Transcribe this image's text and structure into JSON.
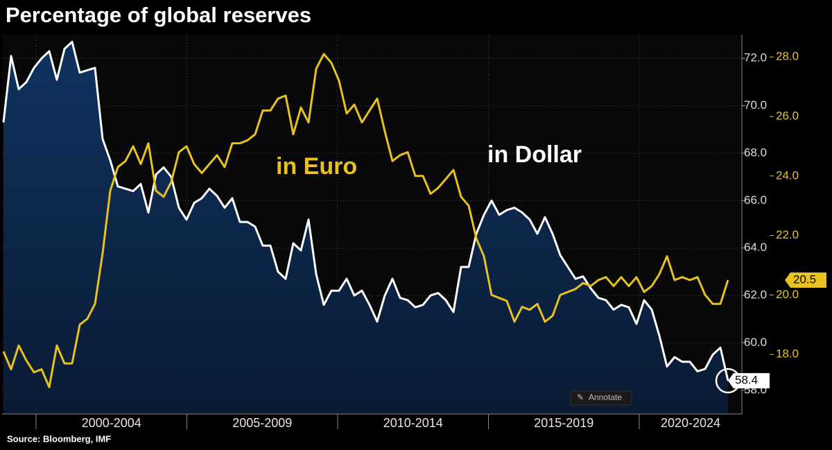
{
  "chart_data": {
    "type": "line",
    "title": "Percentage of global reserves",
    "source": "Source: Bloomberg, IMF",
    "annotate_button": "Annotate",
    "x_labels": [
      "2000-2004",
      "2005-2009",
      "2010-2014",
      "2015-2019",
      "2020-2024"
    ],
    "ylim": [
      57,
      73
    ],
    "yticks": [
      {
        "value": 58,
        "label": "58.0"
      },
      {
        "value": 60,
        "label": "60.0"
      },
      {
        "value": 62,
        "label": "62.0"
      },
      {
        "value": 64,
        "label": "64.0"
      },
      {
        "value": 66,
        "label": "66.0"
      },
      {
        "value": 68,
        "label": "68.0"
      },
      {
        "value": 70,
        "label": "70.0"
      },
      {
        "value": 72,
        "label": "72.0"
      }
    ],
    "y2lim": [
      16,
      28.75
    ],
    "y2ticks": [
      {
        "value": 18,
        "label": "18.0"
      },
      {
        "value": 20,
        "label": "20.0"
      },
      {
        "value": 22,
        "label": "22.0"
      },
      {
        "value": 24,
        "label": "24.0"
      },
      {
        "value": 26,
        "label": "26.0"
      },
      {
        "value": 28,
        "label": "28.0"
      }
    ],
    "grid": true,
    "series": [
      {
        "name": "in Dollar",
        "color": "#ffffff",
        "area_color": "#0c2a50",
        "axis": "y",
        "values": [
          69.3,
          72.1,
          70.7,
          71.0,
          71.6,
          72.0,
          72.3,
          71.1,
          72.4,
          72.7,
          71.4,
          71.5,
          71.6,
          68.6,
          67.7,
          66.6,
          66.5,
          66.4,
          66.7,
          65.5,
          67.1,
          67.4,
          67.0,
          65.7,
          65.2,
          65.9,
          66.1,
          66.5,
          66.2,
          65.7,
          66.1,
          65.1,
          65.1,
          64.9,
          64.1,
          64.1,
          63.0,
          62.7,
          64.2,
          63.9,
          65.2,
          62.9,
          61.6,
          62.2,
          62.2,
          62.7,
          62.0,
          62.2,
          61.6,
          60.9,
          62.0,
          62.7,
          61.9,
          61.8,
          61.5,
          61.6,
          62.0,
          62.1,
          61.8,
          61.3,
          63.2,
          63.2,
          64.6,
          65.4,
          66.0,
          65.4,
          65.6,
          65.7,
          65.5,
          65.2,
          64.6,
          65.3,
          64.6,
          63.7,
          63.2,
          62.7,
          62.8,
          62.3,
          61.9,
          61.8,
          61.4,
          61.6,
          61.5,
          60.8,
          61.8,
          61.4,
          60.3,
          59.0,
          59.4,
          59.2,
          59.2,
          58.8,
          58.9,
          59.5,
          59.8,
          58.4
        ]
      },
      {
        "name": "in Euro",
        "color": "#e8c21e",
        "axis": "y2",
        "values": [
          18.1,
          17.5,
          18.3,
          17.8,
          17.4,
          17.5,
          16.9,
          18.3,
          17.7,
          17.7,
          19.0,
          19.2,
          19.7,
          21.4,
          23.5,
          24.3,
          24.5,
          25.0,
          24.4,
          25.1,
          23.5,
          23.3,
          23.8,
          24.8,
          25.0,
          24.4,
          24.1,
          24.4,
          24.7,
          24.3,
          25.1,
          25.1,
          25.2,
          25.4,
          26.2,
          26.2,
          26.6,
          26.7,
          25.4,
          26.3,
          25.8,
          27.6,
          28.1,
          27.8,
          27.2,
          26.1,
          26.4,
          25.8,
          26.2,
          26.6,
          25.5,
          24.5,
          24.7,
          24.8,
          24.0,
          24.0,
          23.4,
          23.6,
          23.9,
          24.2,
          23.3,
          23.0,
          21.9,
          21.3,
          20.0,
          19.9,
          19.8,
          19.1,
          19.6,
          19.5,
          19.7,
          19.1,
          19.3,
          20.0,
          20.1,
          20.2,
          20.4,
          20.3,
          20.5,
          20.6,
          20.3,
          20.6,
          20.3,
          20.6,
          20.1,
          20.3,
          20.7,
          21.3,
          20.5,
          20.6,
          20.5,
          20.6,
          20.0,
          19.7,
          19.7,
          20.5
        ]
      }
    ]
  }
}
